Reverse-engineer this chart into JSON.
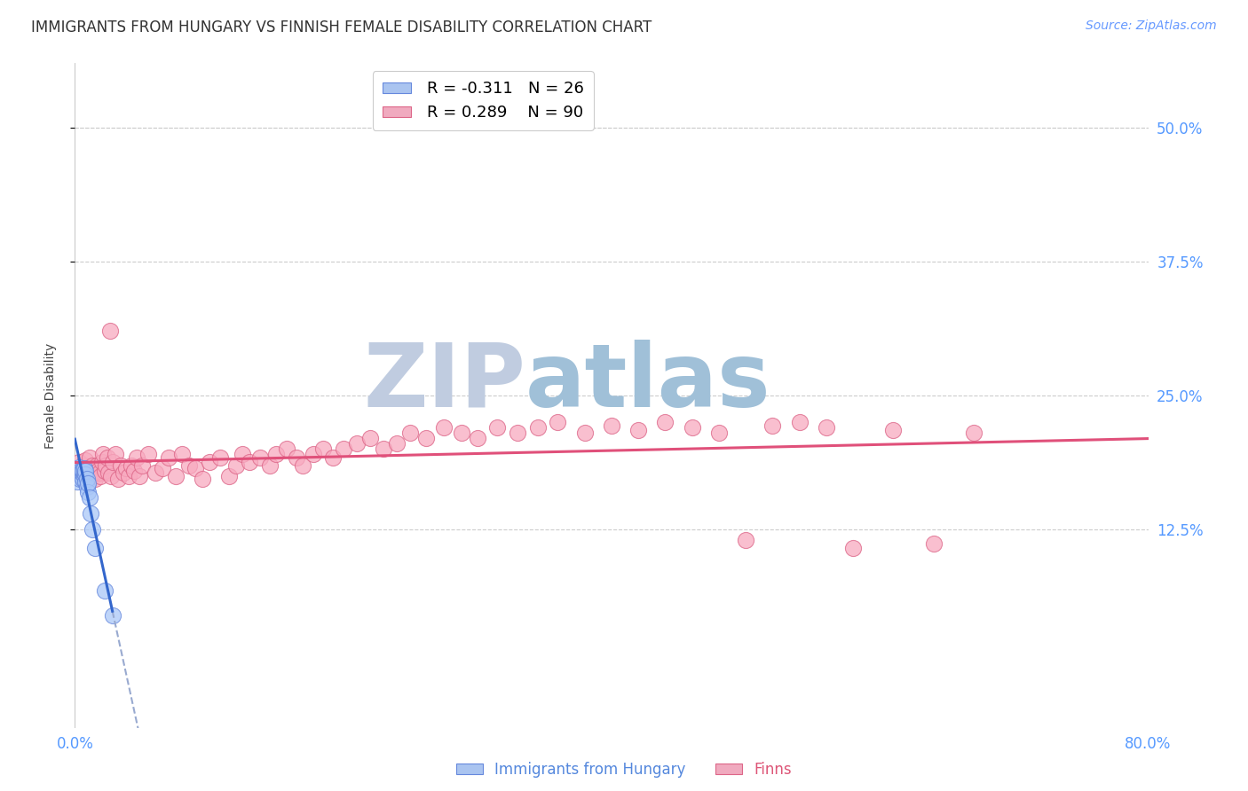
{
  "title": "IMMIGRANTS FROM HUNGARY VS FINNISH FEMALE DISABILITY CORRELATION CHART",
  "source": "Source: ZipAtlas.com",
  "ylabel": "Female Disability",
  "ytick_labels": [
    "12.5%",
    "25.0%",
    "37.5%",
    "50.0%"
  ],
  "ytick_values": [
    0.125,
    0.25,
    0.375,
    0.5
  ],
  "xlim": [
    0.0,
    0.8
  ],
  "ylim": [
    -0.06,
    0.56
  ],
  "legend_color1": "#aac4f0",
  "legend_color2": "#f0aabf",
  "background_color": "#ffffff",
  "watermark_zip": "ZIP",
  "watermark_atlas": "atlas",
  "watermark_color_zip": "#c0cce0",
  "watermark_color_atlas": "#a0c0d8",
  "hungary_color": "#aac8f8",
  "finns_color": "#f8aac0",
  "hungary_edge_color": "#6688dd",
  "finns_edge_color": "#dd6688",
  "title_fontsize": 12,
  "source_fontsize": 10,
  "axis_label_fontsize": 10,
  "tick_fontsize": 12,
  "legend_fontsize": 13,
  "watermark_fontsize": 72,
  "hungary_x": [
    0.002,
    0.003,
    0.003,
    0.004,
    0.004,
    0.005,
    0.005,
    0.006,
    0.006,
    0.006,
    0.007,
    0.007,
    0.007,
    0.008,
    0.008,
    0.008,
    0.009,
    0.009,
    0.01,
    0.01,
    0.011,
    0.012,
    0.013,
    0.015,
    0.022,
    0.028
  ],
  "hungary_y": [
    0.17,
    0.178,
    0.183,
    0.172,
    0.18,
    0.175,
    0.18,
    0.172,
    0.177,
    0.18,
    0.175,
    0.178,
    0.182,
    0.17,
    0.176,
    0.18,
    0.165,
    0.172,
    0.16,
    0.168,
    0.155,
    0.14,
    0.125,
    0.108,
    0.068,
    0.045
  ],
  "finns_x": [
    0.002,
    0.003,
    0.004,
    0.005,
    0.006,
    0.007,
    0.008,
    0.009,
    0.01,
    0.011,
    0.012,
    0.013,
    0.014,
    0.015,
    0.016,
    0.017,
    0.018,
    0.019,
    0.02,
    0.021,
    0.022,
    0.023,
    0.024,
    0.025,
    0.026,
    0.027,
    0.028,
    0.03,
    0.032,
    0.034,
    0.036,
    0.038,
    0.04,
    0.042,
    0.044,
    0.046,
    0.048,
    0.05,
    0.055,
    0.06,
    0.065,
    0.07,
    0.075,
    0.08,
    0.085,
    0.09,
    0.095,
    0.1,
    0.108,
    0.115,
    0.12,
    0.125,
    0.13,
    0.138,
    0.145,
    0.15,
    0.158,
    0.165,
    0.17,
    0.178,
    0.185,
    0.192,
    0.2,
    0.21,
    0.22,
    0.23,
    0.24,
    0.25,
    0.262,
    0.275,
    0.288,
    0.3,
    0.315,
    0.33,
    0.345,
    0.36,
    0.38,
    0.4,
    0.42,
    0.44,
    0.46,
    0.48,
    0.5,
    0.52,
    0.54,
    0.56,
    0.58,
    0.61,
    0.64,
    0.67
  ],
  "finns_y": [
    0.182,
    0.188,
    0.175,
    0.18,
    0.172,
    0.185,
    0.19,
    0.178,
    0.182,
    0.192,
    0.175,
    0.185,
    0.178,
    0.172,
    0.185,
    0.18,
    0.178,
    0.175,
    0.188,
    0.195,
    0.18,
    0.185,
    0.192,
    0.178,
    0.31,
    0.175,
    0.188,
    0.195,
    0.172,
    0.185,
    0.178,
    0.182,
    0.175,
    0.185,
    0.18,
    0.192,
    0.175,
    0.185,
    0.195,
    0.178,
    0.182,
    0.192,
    0.175,
    0.195,
    0.185,
    0.182,
    0.172,
    0.188,
    0.192,
    0.175,
    0.185,
    0.195,
    0.188,
    0.192,
    0.185,
    0.195,
    0.2,
    0.192,
    0.185,
    0.195,
    0.2,
    0.192,
    0.2,
    0.205,
    0.21,
    0.2,
    0.205,
    0.215,
    0.21,
    0.22,
    0.215,
    0.21,
    0.22,
    0.215,
    0.22,
    0.225,
    0.215,
    0.222,
    0.218,
    0.225,
    0.22,
    0.215,
    0.115,
    0.222,
    0.225,
    0.22,
    0.108,
    0.218,
    0.112,
    0.215
  ]
}
